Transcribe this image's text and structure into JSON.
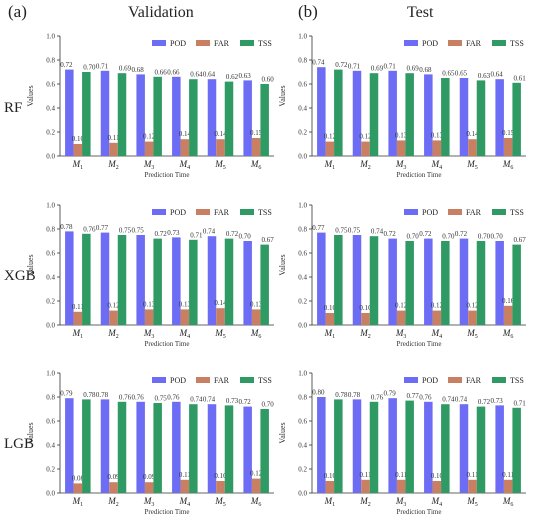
{
  "headers": {
    "panel_a": "(a)",
    "panel_b": "(b)",
    "col_validation": "Validation",
    "col_test": "Test"
  },
  "row_labels": [
    "RF",
    "XGB",
    "LGB"
  ],
  "shared": {
    "categories": [
      "M1",
      "M2",
      "M3",
      "M4",
      "M5",
      "M6"
    ],
    "xlabel": "Prediction Time",
    "ylabel": "Values",
    "ylim": [
      0,
      1.0
    ],
    "yticks": [
      "0.0",
      "0.2",
      "0.4",
      "0.6",
      "0.8",
      "1.0"
    ],
    "legend": [
      "POD",
      "FAR",
      "TSS"
    ],
    "colors": {
      "POD": "#6c6cf4",
      "FAR": "#c98062",
      "TSS": "#2f9a64"
    }
  },
  "chart_data": [
    {
      "type": "bar",
      "row": "RF",
      "column": "Validation",
      "categories": [
        "M1",
        "M2",
        "M3",
        "M4",
        "M5",
        "M6"
      ],
      "series": [
        {
          "name": "POD",
          "values": [
            0.72,
            0.71,
            0.68,
            0.66,
            0.64,
            0.63
          ]
        },
        {
          "name": "FAR",
          "values": [
            0.1,
            0.11,
            0.12,
            0.14,
            0.14,
            0.15
          ]
        },
        {
          "name": "TSS",
          "values": [
            0.7,
            0.69,
            0.66,
            0.64,
            0.62,
            0.6
          ]
        }
      ],
      "xlabel": "Prediction Time",
      "ylabel": "Values",
      "ylim": [
        0,
        1.0
      ],
      "legend": "top-right"
    },
    {
      "type": "bar",
      "row": "RF",
      "column": "Test",
      "categories": [
        "M1",
        "M2",
        "M3",
        "M4",
        "M5",
        "M6"
      ],
      "series": [
        {
          "name": "POD",
          "values": [
            0.74,
            0.71,
            0.71,
            0.68,
            0.65,
            0.64
          ]
        },
        {
          "name": "FAR",
          "values": [
            0.12,
            0.12,
            0.13,
            0.13,
            0.14,
            0.15
          ]
        },
        {
          "name": "TSS",
          "values": [
            0.72,
            0.69,
            0.69,
            0.65,
            0.63,
            0.61
          ]
        }
      ],
      "xlabel": "Prediction Time",
      "ylabel": "Values",
      "ylim": [
        0,
        1.0
      ],
      "legend": "top-right"
    },
    {
      "type": "bar",
      "row": "XGB",
      "column": "Validation",
      "categories": [
        "M1",
        "M2",
        "M3",
        "M4",
        "M5",
        "M6"
      ],
      "series": [
        {
          "name": "POD",
          "values": [
            0.78,
            0.77,
            0.75,
            0.73,
            0.74,
            0.7
          ]
        },
        {
          "name": "FAR",
          "values": [
            0.11,
            0.12,
            0.13,
            0.13,
            0.14,
            0.13
          ]
        },
        {
          "name": "TSS",
          "values": [
            0.76,
            0.75,
            0.72,
            0.71,
            0.72,
            0.67
          ]
        }
      ],
      "xlabel": "Prediction Time",
      "ylabel": "Values",
      "ylim": [
        0,
        1.0
      ],
      "legend": "top-right"
    },
    {
      "type": "bar",
      "row": "XGB",
      "column": "Test",
      "categories": [
        "M1",
        "M2",
        "M3",
        "M4",
        "M5",
        "M6"
      ],
      "series": [
        {
          "name": "POD",
          "values": [
            0.77,
            0.75,
            0.72,
            0.72,
            0.72,
            0.7
          ]
        },
        {
          "name": "FAR",
          "values": [
            0.1,
            0.1,
            0.12,
            0.12,
            0.12,
            0.16
          ]
        },
        {
          "name": "TSS",
          "values": [
            0.75,
            0.74,
            0.7,
            0.7,
            0.7,
            0.67
          ]
        }
      ],
      "xlabel": "Prediction Time",
      "ylabel": "Values",
      "ylim": [
        0,
        1.0
      ],
      "legend": "top-right"
    },
    {
      "type": "bar",
      "row": "LGB",
      "column": "Validation",
      "categories": [
        "M1",
        "M2",
        "M3",
        "M4",
        "M5",
        "M6"
      ],
      "series": [
        {
          "name": "POD",
          "values": [
            0.79,
            0.78,
            0.76,
            0.76,
            0.74,
            0.72
          ]
        },
        {
          "name": "FAR",
          "values": [
            0.08,
            0.09,
            0.09,
            0.11,
            0.1,
            0.12
          ]
        },
        {
          "name": "TSS",
          "values": [
            0.78,
            0.76,
            0.75,
            0.74,
            0.73,
            0.7
          ]
        }
      ],
      "xlabel": "Prediction Time",
      "ylabel": "Values",
      "ylim": [
        0,
        1.0
      ],
      "legend": "top-right"
    },
    {
      "type": "bar",
      "row": "LGB",
      "column": "Test",
      "categories": [
        "M1",
        "M2",
        "M3",
        "M4",
        "M5",
        "M6"
      ],
      "series": [
        {
          "name": "POD",
          "values": [
            0.8,
            0.78,
            0.79,
            0.76,
            0.74,
            0.73
          ]
        },
        {
          "name": "FAR",
          "values": [
            0.1,
            0.11,
            0.11,
            0.1,
            0.11,
            0.11
          ]
        },
        {
          "name": "TSS",
          "values": [
            0.78,
            0.76,
            0.77,
            0.74,
            0.72,
            0.71
          ]
        }
      ],
      "xlabel": "Prediction Time",
      "ylabel": "Values",
      "ylim": [
        0,
        1.0
      ],
      "legend": "top-right"
    }
  ]
}
